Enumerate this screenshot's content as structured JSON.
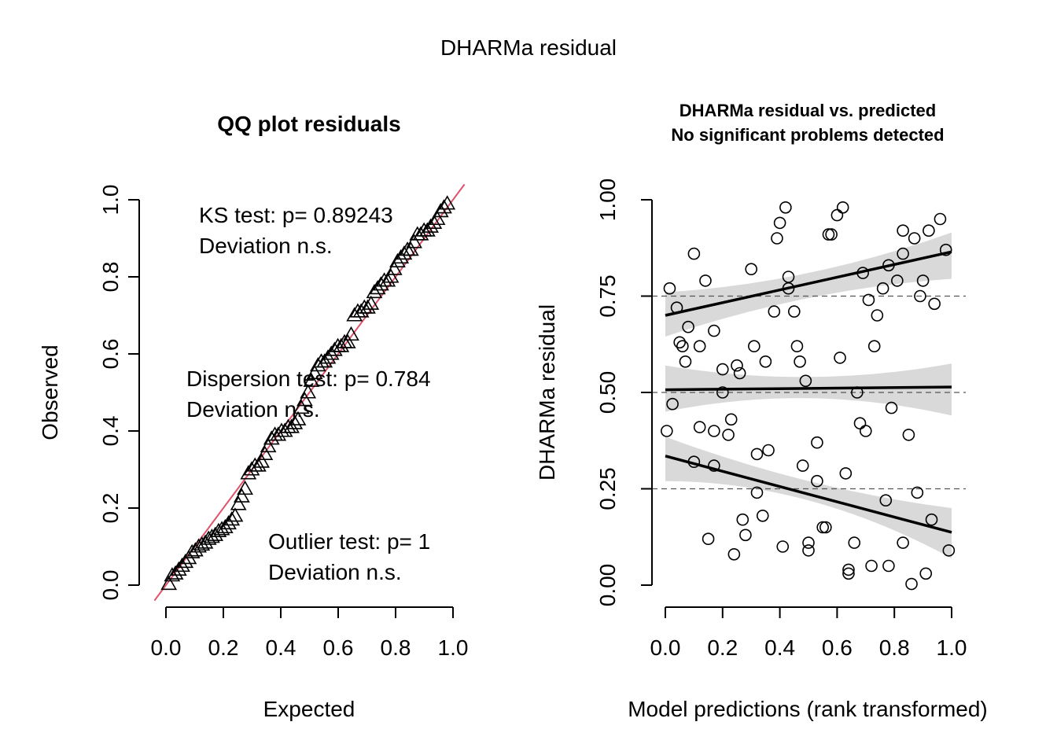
{
  "figure": {
    "title": "DHARMa residual"
  },
  "chart_data": [
    {
      "type": "scatter",
      "panel": "qq",
      "title": "QQ plot residuals",
      "xlabel": "Expected",
      "ylabel": "Observed",
      "xlim": [
        0,
        1
      ],
      "ylim": [
        0,
        1
      ],
      "xticks": [
        "0.0",
        "0.2",
        "0.4",
        "0.6",
        "0.8",
        "1.0"
      ],
      "yticks": [
        "0.0",
        "0.2",
        "0.4",
        "0.6",
        "0.8",
        "1.0"
      ],
      "marker": "triangle",
      "reference_line": {
        "intercept": 0,
        "slope": 1,
        "color": "#DF536B"
      },
      "series": [
        {
          "points": [
            [
              0.01,
              0.003
            ],
            [
              0.02,
              0.025
            ],
            [
              0.03,
              0.03
            ],
            [
              0.04,
              0.04
            ],
            [
              0.05,
              0.05
            ],
            [
              0.06,
              0.06
            ],
            [
              0.07,
              0.07
            ],
            [
              0.08,
              0.085
            ],
            [
              0.09,
              0.09
            ],
            [
              0.1,
              0.1
            ],
            [
              0.11,
              0.105
            ],
            [
              0.12,
              0.11
            ],
            [
              0.13,
              0.12
            ],
            [
              0.14,
              0.125
            ],
            [
              0.15,
              0.13
            ],
            [
              0.16,
              0.14
            ],
            [
              0.17,
              0.145
            ],
            [
              0.18,
              0.15
            ],
            [
              0.19,
              0.16
            ],
            [
              0.2,
              0.17
            ],
            [
              0.21,
              0.18
            ],
            [
              0.22,
              0.21
            ],
            [
              0.23,
              0.23
            ],
            [
              0.24,
              0.25
            ],
            [
              0.25,
              0.29
            ],
            [
              0.26,
              0.3
            ],
            [
              0.27,
              0.31
            ],
            [
              0.28,
              0.31
            ],
            [
              0.29,
              0.32
            ],
            [
              0.3,
              0.34
            ],
            [
              0.31,
              0.36
            ],
            [
              0.32,
              0.38
            ],
            [
              0.33,
              0.39
            ],
            [
              0.34,
              0.39
            ],
            [
              0.35,
              0.4
            ],
            [
              0.36,
              0.4
            ],
            [
              0.37,
              0.41
            ],
            [
              0.38,
              0.41
            ],
            [
              0.39,
              0.42
            ],
            [
              0.4,
              0.43
            ],
            [
              0.41,
              0.46
            ],
            [
              0.42,
              0.48
            ],
            [
              0.43,
              0.5
            ],
            [
              0.44,
              0.53
            ],
            [
              0.45,
              0.55
            ],
            [
              0.46,
              0.57
            ],
            [
              0.47,
              0.58
            ],
            [
              0.48,
              0.58
            ],
            [
              0.49,
              0.59
            ],
            [
              0.5,
              0.6
            ],
            [
              0.51,
              0.61
            ],
            [
              0.52,
              0.62
            ],
            [
              0.53,
              0.62
            ],
            [
              0.54,
              0.63
            ],
            [
              0.55,
              0.63
            ],
            [
              0.56,
              0.65
            ],
            [
              0.57,
              0.7
            ],
            [
              0.58,
              0.71
            ],
            [
              0.59,
              0.71
            ],
            [
              0.6,
              0.72
            ],
            [
              0.61,
              0.72
            ],
            [
              0.62,
              0.73
            ],
            [
              0.63,
              0.76
            ],
            [
              0.64,
              0.77
            ],
            [
              0.65,
              0.78
            ],
            [
              0.66,
              0.79
            ],
            [
              0.67,
              0.79
            ],
            [
              0.68,
              0.8
            ],
            [
              0.69,
              0.82
            ],
            [
              0.7,
              0.84
            ],
            [
              0.71,
              0.85
            ],
            [
              0.72,
              0.86
            ],
            [
              0.73,
              0.87
            ],
            [
              0.74,
              0.87
            ],
            [
              0.75,
              0.89
            ],
            [
              0.76,
              0.91
            ],
            [
              0.77,
              0.91
            ],
            [
              0.78,
              0.92
            ],
            [
              0.79,
              0.92
            ],
            [
              0.8,
              0.93
            ],
            [
              0.81,
              0.94
            ],
            [
              0.82,
              0.95
            ],
            [
              0.83,
              0.97
            ],
            [
              0.84,
              0.98
            ],
            [
              0.85,
              0.99
            ]
          ],
          "points_x_scale": [
            0.01,
            0.98
          ]
        }
      ],
      "annotations": [
        {
          "lines": [
            "KS test: p= 0.89243",
            "Deviation  n.s."
          ]
        },
        {
          "lines": [
            "Dispersion test: p= 0.784",
            "Deviation  n.s."
          ]
        },
        {
          "lines": [
            "Outlier test: p= 1",
            "Deviation  n.s."
          ]
        }
      ]
    },
    {
      "type": "scatter",
      "panel": "residual-vs-predicted",
      "title": "DHARMa residual vs. predicted",
      "subtitle": "No significant problems detected",
      "xlabel": "Model predictions (rank transformed)",
      "ylabel": "DHARMa residual",
      "xlim": [
        0,
        1
      ],
      "ylim": [
        0,
        1
      ],
      "xticks": [
        "0.0",
        "0.2",
        "0.4",
        "0.6",
        "0.8",
        "1.0"
      ],
      "yticks": [
        "0.00",
        "0.25",
        "0.50",
        "0.75",
        "1.00"
      ],
      "marker": "open-circle",
      "reference_lines_y": [
        0.25,
        0.5,
        0.75
      ],
      "points": [
        [
          0.005,
          0.4
        ],
        [
          0.015,
          0.77
        ],
        [
          0.025,
          0.47
        ],
        [
          0.04,
          0.72
        ],
        [
          0.05,
          0.63
        ],
        [
          0.06,
          0.62
        ],
        [
          0.07,
          0.58
        ],
        [
          0.08,
          0.67
        ],
        [
          0.1,
          0.86
        ],
        [
          0.1,
          0.32
        ],
        [
          0.12,
          0.41
        ],
        [
          0.12,
          0.62
        ],
        [
          0.14,
          0.79
        ],
        [
          0.15,
          0.12
        ],
        [
          0.17,
          0.66
        ],
        [
          0.17,
          0.4
        ],
        [
          0.17,
          0.31
        ],
        [
          0.2,
          0.56
        ],
        [
          0.2,
          0.5
        ],
        [
          0.22,
          0.39
        ],
        [
          0.23,
          0.43
        ],
        [
          0.24,
          0.08
        ],
        [
          0.25,
          0.57
        ],
        [
          0.26,
          0.55
        ],
        [
          0.27,
          0.17
        ],
        [
          0.28,
          0.13
        ],
        [
          0.3,
          0.82
        ],
        [
          0.31,
          0.62
        ],
        [
          0.32,
          0.34
        ],
        [
          0.32,
          0.24
        ],
        [
          0.34,
          0.18
        ],
        [
          0.35,
          0.58
        ],
        [
          0.36,
          0.35
        ],
        [
          0.38,
          0.71
        ],
        [
          0.39,
          0.9
        ],
        [
          0.4,
          0.94
        ],
        [
          0.41,
          0.1
        ],
        [
          0.42,
          0.98
        ],
        [
          0.43,
          0.8
        ],
        [
          0.43,
          0.77
        ],
        [
          0.45,
          0.71
        ],
        [
          0.46,
          0.62
        ],
        [
          0.47,
          0.58
        ],
        [
          0.48,
          0.31
        ],
        [
          0.49,
          0.53
        ],
        [
          0.5,
          0.11
        ],
        [
          0.5,
          0.09
        ],
        [
          0.53,
          0.37
        ],
        [
          0.53,
          0.27
        ],
        [
          0.55,
          0.15
        ],
        [
          0.56,
          0.15
        ],
        [
          0.57,
          0.91
        ],
        [
          0.58,
          0.91
        ],
        [
          0.6,
          0.96
        ],
        [
          0.61,
          0.59
        ],
        [
          0.62,
          0.98
        ],
        [
          0.63,
          0.29
        ],
        [
          0.64,
          0.04
        ],
        [
          0.64,
          0.03
        ],
        [
          0.66,
          0.11
        ],
        [
          0.67,
          0.5
        ],
        [
          0.68,
          0.42
        ],
        [
          0.69,
          0.81
        ],
        [
          0.7,
          0.4
        ],
        [
          0.71,
          0.74
        ],
        [
          0.72,
          0.05
        ],
        [
          0.73,
          0.62
        ],
        [
          0.74,
          0.7
        ],
        [
          0.76,
          0.77
        ],
        [
          0.77,
          0.22
        ],
        [
          0.78,
          0.83
        ],
        [
          0.78,
          0.05
        ],
        [
          0.79,
          0.46
        ],
        [
          0.81,
          0.79
        ],
        [
          0.83,
          0.92
        ],
        [
          0.83,
          0.86
        ],
        [
          0.83,
          0.11
        ],
        [
          0.85,
          0.39
        ],
        [
          0.86,
          0.003
        ],
        [
          0.87,
          0.9
        ],
        [
          0.88,
          0.24
        ],
        [
          0.89,
          0.75
        ],
        [
          0.9,
          0.79
        ],
        [
          0.91,
          0.03
        ],
        [
          0.92,
          0.92
        ],
        [
          0.93,
          0.17
        ],
        [
          0.94,
          0.73
        ],
        [
          0.96,
          0.95
        ],
        [
          0.98,
          0.87
        ],
        [
          0.99,
          0.09
        ]
      ],
      "quantile_fits": [
        {
          "quantile": 0.25,
          "line": [
            [
              0,
              0.335
            ],
            [
              1,
              0.137
            ]
          ],
          "band_upper": [
            [
              0,
              0.385
            ],
            [
              0.5,
              0.27
            ],
            [
              1,
              0.2
            ]
          ],
          "band_lower": [
            [
              0,
              0.27
            ],
            [
              0.5,
              0.22
            ],
            [
              1,
              0.07
            ]
          ]
        },
        {
          "quantile": 0.5,
          "line": [
            [
              0,
              0.507
            ],
            [
              1,
              0.514
            ]
          ],
          "band_upper": [
            [
              0,
              0.57
            ],
            [
              0.5,
              0.54
            ],
            [
              1,
              0.575
            ]
          ],
          "band_lower": [
            [
              0,
              0.45
            ],
            [
              0.5,
              0.485
            ],
            [
              1,
              0.44
            ]
          ]
        },
        {
          "quantile": 0.75,
          "line": [
            [
              0,
              0.7
            ],
            [
              1,
              0.865
            ]
          ],
          "band_upper": [
            [
              0,
              0.76
            ],
            [
              0.5,
              0.81
            ],
            [
              1,
              0.915
            ]
          ],
          "band_lower": [
            [
              0,
              0.645
            ],
            [
              0.5,
              0.745
            ],
            [
              1,
              0.795
            ]
          ]
        }
      ],
      "band_color": "#D9D9D9"
    }
  ]
}
